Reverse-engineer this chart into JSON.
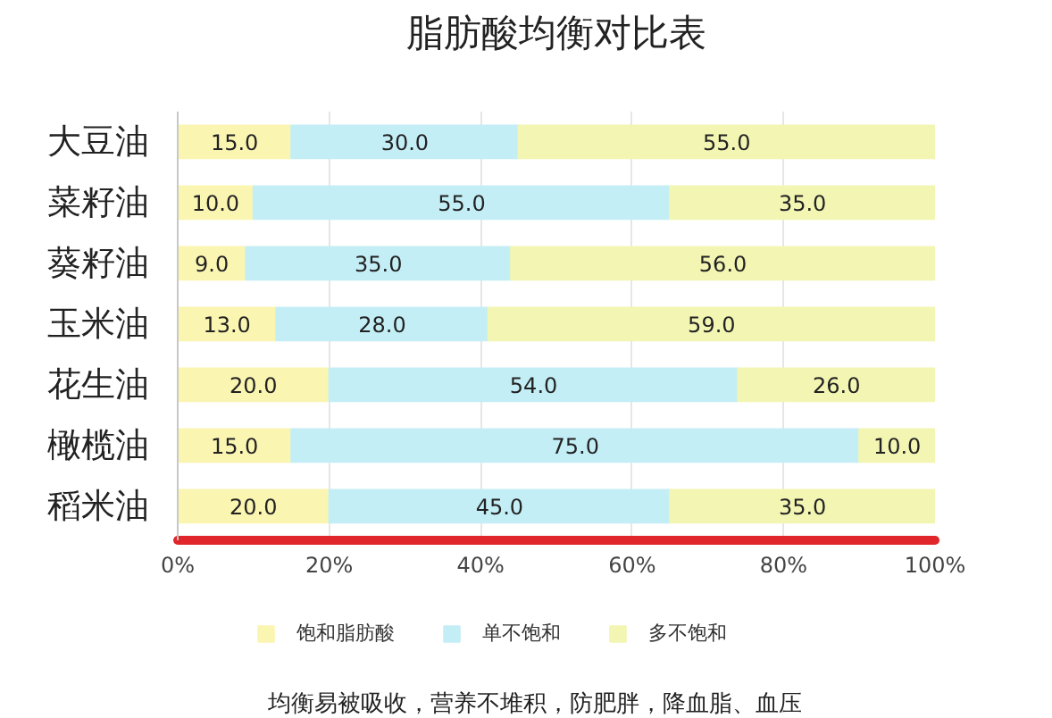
{
  "chart_data": {
    "type": "bar",
    "orientation": "horizontal",
    "stacked": true,
    "title": "脂肪酸均衡对比表",
    "categories": [
      "大豆油",
      "菜籽油",
      "葵籽油",
      "玉米油",
      "花生油",
      "橄榄油",
      "稻米油"
    ],
    "series": [
      {
        "name": "饱和脂肪酸",
        "color": "#fbf5b2",
        "values": [
          15,
          10,
          9,
          13,
          20,
          15,
          20
        ],
        "value_labels": [
          "15.0",
          "10.0",
          "9.0",
          "13.0",
          "20.0",
          "15.0",
          "20.0"
        ]
      },
      {
        "name": "单不饱和",
        "color": "#c4eef6",
        "values": [
          30,
          55,
          35,
          28,
          54,
          75,
          45
        ],
        "value_labels": [
          "30.0",
          "55.0",
          "35.0",
          "28.0",
          "54.0",
          "75.0",
          "45.0"
        ]
      },
      {
        "name": "多不饱和",
        "color": "#f3f6b3",
        "values": [
          55,
          35,
          56,
          59,
          26,
          10,
          35
        ],
        "value_labels": [
          "55.0",
          "35.0",
          "56.0",
          "59.0",
          "26.0",
          "10.0",
          "35.0"
        ]
      }
    ],
    "xlim": [
      0,
      100
    ],
    "xticks": [
      {
        "value": 0,
        "label": "0%"
      },
      {
        "value": 20,
        "label": "20%"
      },
      {
        "value": 40,
        "label": "40%"
      },
      {
        "value": 60,
        "label": "60%"
      },
      {
        "value": 80,
        "label": "80%"
      },
      {
        "value": 100,
        "label": "100%"
      }
    ],
    "grid": "x",
    "legend": "bottom",
    "annotations": [
      "均衡易被吸收，营养不堆积，防肥胖，降血脂、血压"
    ]
  }
}
